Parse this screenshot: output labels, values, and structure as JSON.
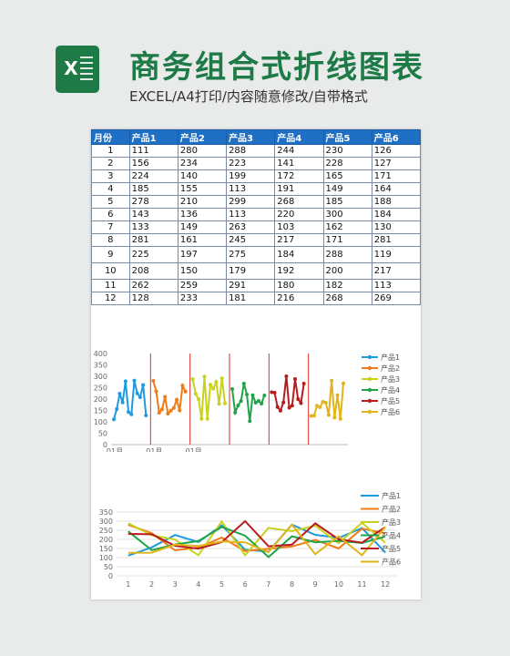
{
  "header": {
    "icon_letter": "X",
    "title": "商务组合式折线图表",
    "subtitle": "EXCEL/A4打印/内容随意修改/自带格式"
  },
  "table": {
    "columns": [
      "月份",
      "产品1",
      "产品2",
      "产品3",
      "产品4",
      "产品5",
      "产品6"
    ],
    "rows": [
      [
        "1",
        "111",
        "280",
        "288",
        "244",
        "230",
        "126"
      ],
      [
        "2",
        "156",
        "234",
        "223",
        "141",
        "228",
        "127"
      ],
      [
        "3",
        "224",
        "140",
        "199",
        "172",
        "165",
        "171"
      ],
      [
        "4",
        "185",
        "155",
        "113",
        "191",
        "149",
        "164"
      ],
      [
        "5",
        "278",
        "210",
        "299",
        "268",
        "185",
        "188"
      ],
      [
        "6",
        "143",
        "136",
        "113",
        "220",
        "300",
        "184"
      ],
      [
        "7",
        "133",
        "149",
        "263",
        "103",
        "162",
        "130"
      ],
      [
        "8",
        "281",
        "161",
        "245",
        "217",
        "171",
        "281"
      ],
      [
        "9",
        "225",
        "197",
        "275",
        "184",
        "288",
        "119"
      ],
      [
        "10",
        "208",
        "150",
        "179",
        "192",
        "200",
        "217"
      ],
      [
        "11",
        "262",
        "259",
        "291",
        "180",
        "182",
        "113"
      ],
      [
        "12",
        "128",
        "233",
        "181",
        "216",
        "268",
        "269"
      ]
    ]
  },
  "colors": {
    "header_bg": "#1f6fc5",
    "series": [
      "#1e9be0",
      "#f07b19",
      "#c9d21b",
      "#1fa548",
      "#b71c1c",
      "#e0b41a"
    ],
    "divider": "#e03030",
    "brand": "#1e7a46"
  },
  "chart_data": [
    {
      "type": "line",
      "layout": "panel",
      "categories": [
        "1",
        "2",
        "3",
        "4",
        "5",
        "6",
        "7",
        "8",
        "9",
        "10",
        "11",
        "12"
      ],
      "x_tick_labels": [
        "01月",
        "01月",
        "01月"
      ],
      "ylim": [
        0,
        400
      ],
      "y_ticks": [
        "0",
        "50",
        "100",
        "150",
        "200",
        "250",
        "300",
        "350",
        "400"
      ],
      "legend_position": "right",
      "series": [
        {
          "name": "产品1",
          "values": [
            111,
            156,
            224,
            185,
            278,
            143,
            133,
            281,
            225,
            208,
            262,
            128
          ]
        },
        {
          "name": "产品2",
          "values": [
            280,
            234,
            140,
            155,
            210,
            136,
            149,
            161,
            197,
            150,
            259,
            233
          ]
        },
        {
          "name": "产品3",
          "values": [
            288,
            223,
            199,
            113,
            299,
            113,
            263,
            245,
            275,
            179,
            291,
            181
          ]
        },
        {
          "name": "产品4",
          "values": [
            244,
            141,
            172,
            191,
            268,
            220,
            103,
            217,
            184,
            192,
            180,
            216
          ]
        },
        {
          "name": "产品5",
          "values": [
            230,
            228,
            165,
            149,
            185,
            300,
            162,
            171,
            288,
            200,
            182,
            268
          ]
        },
        {
          "name": "产品6",
          "values": [
            126,
            127,
            171,
            164,
            188,
            184,
            130,
            281,
            119,
            217,
            113,
            269
          ]
        }
      ]
    },
    {
      "type": "line",
      "layout": "overlay",
      "categories": [
        "1",
        "2",
        "3",
        "4",
        "5",
        "6",
        "7",
        "8",
        "9",
        "10",
        "11",
        "12"
      ],
      "ylim": [
        0,
        350
      ],
      "y_ticks": [
        "0",
        "50",
        "100",
        "150",
        "200",
        "250",
        "300",
        "350"
      ],
      "legend_position": "right",
      "series": [
        {
          "name": "产品1",
          "values": [
            111,
            156,
            224,
            185,
            278,
            143,
            133,
            281,
            225,
            208,
            262,
            128
          ]
        },
        {
          "name": "产品2",
          "values": [
            280,
            234,
            140,
            155,
            210,
            136,
            149,
            161,
            197,
            150,
            259,
            233
          ]
        },
        {
          "name": "产品3",
          "values": [
            288,
            223,
            199,
            113,
            299,
            113,
            263,
            245,
            275,
            179,
            291,
            181
          ]
        },
        {
          "name": "产品4",
          "values": [
            244,
            141,
            172,
            191,
            268,
            220,
            103,
            217,
            184,
            192,
            180,
            216
          ]
        },
        {
          "name": "产品5",
          "values": [
            230,
            228,
            165,
            149,
            185,
            300,
            162,
            171,
            288,
            200,
            182,
            268
          ]
        },
        {
          "name": "产品6",
          "values": [
            126,
            127,
            171,
            164,
            188,
            184,
            130,
            281,
            119,
            217,
            113,
            269
          ]
        }
      ]
    }
  ]
}
